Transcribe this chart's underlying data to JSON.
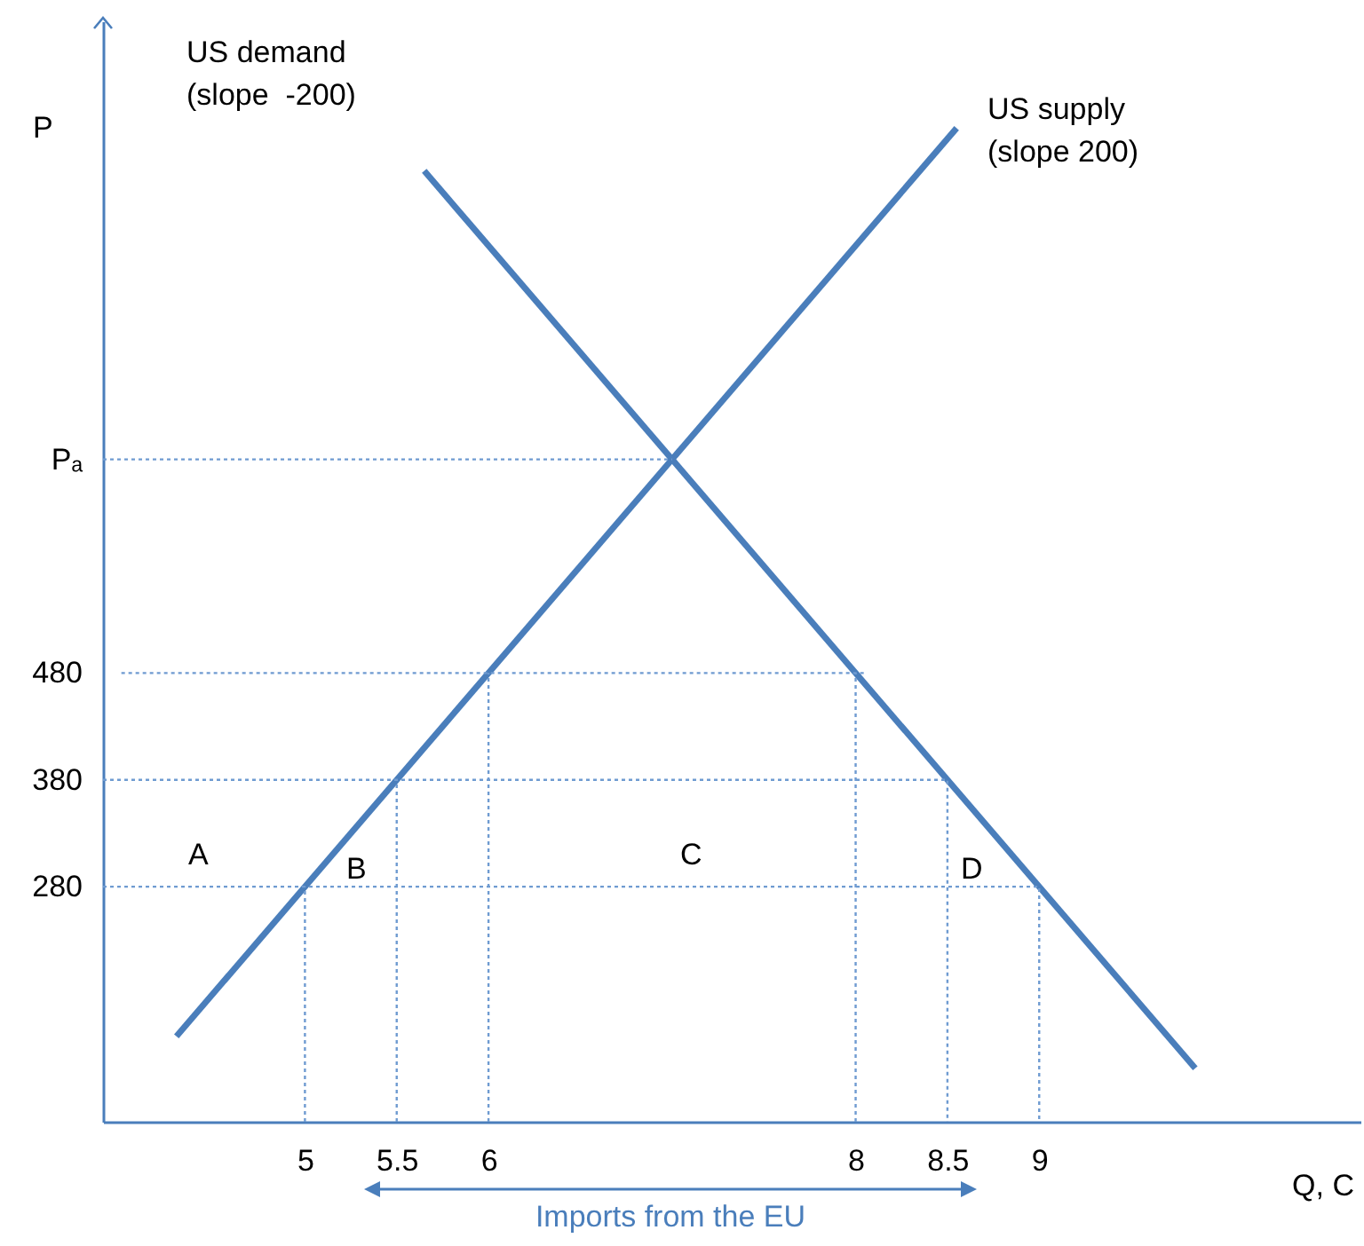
{
  "chart_data": {
    "type": "line",
    "xlabel": "Q, C",
    "ylabel": "P",
    "xlim": [
      3.9,
      10.75
    ],
    "ylim": [
      60,
      1090
    ],
    "xticks": [
      5,
      5.5,
      6,
      8,
      8.5,
      9
    ],
    "yticks": [
      280,
      380,
      480,
      {
        "value": 680,
        "label": "Pₐ"
      }
    ],
    "grid": false,
    "marker": "none",
    "series": [
      {
        "color": "#4a7ebb",
        "line_style": "solid",
        "x": [
          4.3,
          8.55
        ],
        "values": [
          140,
          990
        ]
      },
      {
        "color": "#4a7ebb",
        "line_style": "solid",
        "x": [
          5.65,
          9.85
        ],
        "values": [
          950,
          110
        ]
      },
      {
        "color": "#6f9bd1",
        "line_style": "dotted",
        "x": [
          3.9,
          7
        ],
        "values": [
          680,
          680
        ]
      },
      {
        "color": "#6f9bd1",
        "line_style": "dotted",
        "x": [
          4.0,
          8.05
        ],
        "values": [
          480,
          480
        ]
      },
      {
        "color": "#6f9bd1",
        "line_style": "dotted",
        "x": [
          6,
          6
        ],
        "values": [
          60,
          480
        ]
      },
      {
        "color": "#6f9bd1",
        "line_style": "dotted",
        "x": [
          8,
          8
        ],
        "values": [
          60,
          480
        ]
      },
      {
        "color": "#6f9bd1",
        "line_style": "dotted",
        "x": [
          3.9,
          8.5,
          8.5
        ],
        "values": [
          380,
          380,
          60
        ]
      },
      {
        "color": "#6f9bd1",
        "line_style": "dotted",
        "x": [
          5.5,
          5.5
        ],
        "values": [
          60,
          380
        ]
      },
      {
        "color": "#6f9bd1",
        "line_style": "dotted",
        "x": [
          3.9,
          9,
          9
        ],
        "values": [
          280,
          280,
          60
        ]
      },
      {
        "color": "#6f9bd1",
        "line_style": "dotted",
        "x": [
          5,
          5
        ],
        "values": [
          60,
          280
        ]
      }
    ],
    "annotations": [
      "US demand\n(slope  -200)",
      "US supply\n(slope 200)",
      "A",
      "B",
      "C",
      "D",
      "Imports from the EU"
    ]
  }
}
